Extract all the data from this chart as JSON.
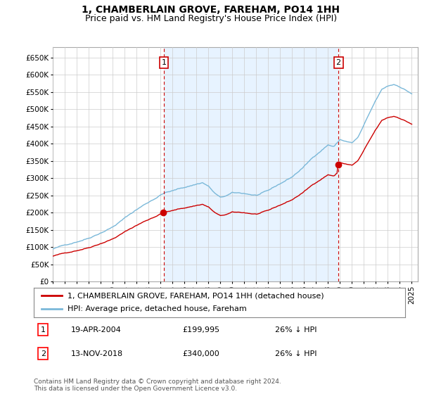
{
  "title": "1, CHAMBERLAIN GROVE, FAREHAM, PO14 1HH",
  "subtitle": "Price paid vs. HM Land Registry's House Price Index (HPI)",
  "ylim": [
    0,
    680000
  ],
  "yticks": [
    0,
    50000,
    100000,
    150000,
    200000,
    250000,
    300000,
    350000,
    400000,
    450000,
    500000,
    550000,
    600000,
    650000
  ],
  "hpi_color": "#7ab8d9",
  "price_color": "#cc0000",
  "vline_color": "#cc0000",
  "shade_color": "#ddeeff",
  "bg_color": "#ffffff",
  "grid_color": "#cccccc",
  "legend_entries": [
    "1, CHAMBERLAIN GROVE, FAREHAM, PO14 1HH (detached house)",
    "HPI: Average price, detached house, Fareham"
  ],
  "sale1_x": 2004.29,
  "sale1_price": 199995,
  "sale2_x": 2018.87,
  "sale2_price": 340000,
  "annotation1": {
    "label": "1",
    "date": "19-APR-2004",
    "price": "£199,995",
    "hpi": "26% ↓ HPI"
  },
  "annotation2": {
    "label": "2",
    "date": "13-NOV-2018",
    "price": "£340,000",
    "hpi": "26% ↓ HPI"
  },
  "footer": "Contains HM Land Registry data © Crown copyright and database right 2024.\nThis data is licensed under the Open Government Licence v3.0.",
  "title_fontsize": 10,
  "subtitle_fontsize": 9,
  "tick_fontsize": 7.5,
  "legend_fontsize": 8,
  "xlim_left": 1995.0,
  "xlim_right": 2025.5
}
